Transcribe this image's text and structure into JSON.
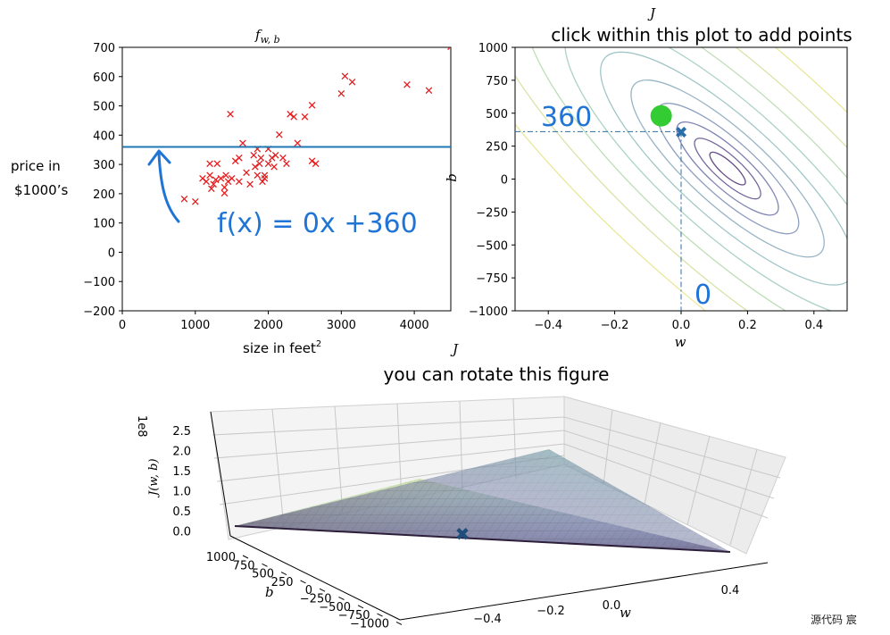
{
  "chart_data": [
    {
      "type": "scatter",
      "title": "f_w,b",
      "xlabel": "size in feet",
      "xlabel_sup": "2",
      "ylabel_line1": "price in",
      "ylabel_line2": "$1000’s",
      "xlim": [
        0,
        4500
      ],
      "ylim": [
        -200,
        700
      ],
      "xticks": [
        0,
        1000,
        2000,
        3000,
        4000
      ],
      "yticks": [
        700,
        600,
        500,
        400,
        300,
        200,
        100,
        0,
        -100,
        -200
      ],
      "marker_color": "#e41a1c",
      "line_color": "#1f77b4",
      "points": [
        [
          850,
          180
        ],
        [
          1000,
          170
        ],
        [
          1100,
          250
        ],
        [
          1150,
          240
        ],
        [
          1200,
          300
        ],
        [
          1200,
          260
        ],
        [
          1220,
          215
        ],
        [
          1250,
          230
        ],
        [
          1280,
          245
        ],
        [
          1300,
          300
        ],
        [
          1350,
          250
        ],
        [
          1400,
          200
        ],
        [
          1400,
          220
        ],
        [
          1420,
          260
        ],
        [
          1450,
          240
        ],
        [
          1480,
          470
        ],
        [
          1500,
          250
        ],
        [
          1550,
          310
        ],
        [
          1600,
          240
        ],
        [
          1600,
          320
        ],
        [
          1650,
          370
        ],
        [
          1700,
          270
        ],
        [
          1750,
          230
        ],
        [
          1800,
          330
        ],
        [
          1820,
          290
        ],
        [
          1850,
          260
        ],
        [
          1850,
          350
        ],
        [
          1880,
          300
        ],
        [
          1900,
          320
        ],
        [
          1920,
          240
        ],
        [
          1950,
          260
        ],
        [
          1950,
          250
        ],
        [
          2000,
          300
        ],
        [
          2000,
          350
        ],
        [
          2050,
          320
        ],
        [
          2080,
          290
        ],
        [
          2100,
          330
        ],
        [
          2150,
          400
        ],
        [
          2200,
          320
        ],
        [
          2250,
          300
        ],
        [
          2300,
          470
        ],
        [
          2350,
          460
        ],
        [
          2400,
          370
        ],
        [
          2500,
          460
        ],
        [
          2600,
          310
        ],
        [
          2600,
          500
        ],
        [
          2650,
          300
        ],
        [
          3000,
          540
        ],
        [
          3050,
          600
        ],
        [
          3150,
          580
        ],
        [
          3900,
          570
        ],
        [
          4200,
          550
        ],
        [
          4500,
          700
        ]
      ],
      "fit_line": {
        "w": 0,
        "b": 360
      }
    },
    {
      "type": "contour",
      "title": "J",
      "subtitle": "click within this plot to add points",
      "xlabel": "w",
      "ylabel": "b",
      "xlim": [
        -0.5,
        0.5
      ],
      "ylim": [
        -1000,
        1000
      ],
      "xticks": [
        -0.4,
        -0.2,
        0.0,
        0.2,
        0.4
      ],
      "xtick_labels": [
        "−0.4",
        "−0.2",
        "0.0",
        "0.2",
        "0.4"
      ],
      "yticks": [
        1000,
        750,
        500,
        250,
        0,
        -250,
        -500,
        -750,
        -1000
      ],
      "ytick_labels": [
        "1000",
        "750",
        "500",
        "250",
        "0",
        "−250",
        "−500",
        "−750",
        "−1000"
      ],
      "minimum": {
        "w": 0.14,
        "b": 80
      },
      "current_point": {
        "w": 0.0,
        "b": 360
      },
      "clicked_point": {
        "w": -0.06,
        "b": 480
      },
      "colors": {
        "x_marker": "#2b6ea8",
        "click_marker": "#33cc33",
        "dashed": "#2b6ea8"
      }
    },
    {
      "type": "surface3d",
      "title": "J",
      "subtitle": "you can rotate this figure",
      "xlabel": "w",
      "ylabel": "b",
      "zlabel": "J(w, b)",
      "zscale_label": "1e8",
      "zticks": [
        "2.5",
        "2.0",
        "1.5",
        "1.0",
        "0.5",
        "0.0"
      ],
      "yticks": [
        "1000",
        "750",
        "500",
        "250",
        "0",
        "−250",
        "−500",
        "−750",
        "−1000"
      ],
      "xticks": [
        "−0.4",
        "−0.2",
        "0.0",
        "0.4"
      ],
      "marker": {
        "w": 0.0,
        "b": 360
      }
    }
  ],
  "annotations": {
    "fit_eq": "f(x) = 0x +360",
    "b_value": "360",
    "w_value": "0"
  },
  "watermark": "源代码  宸"
}
